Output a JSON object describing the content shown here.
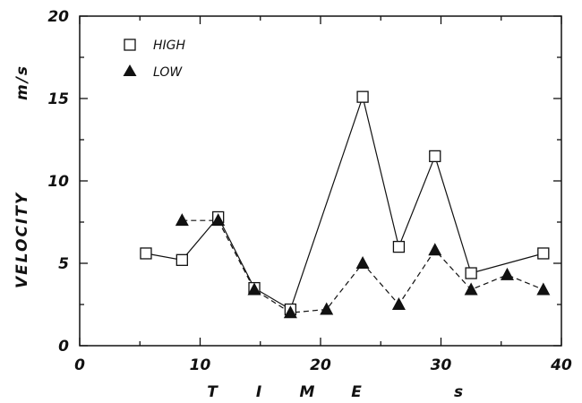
{
  "chart_data": {
    "type": "line",
    "xlim": [
      0,
      40
    ],
    "ylim": [
      0,
      20
    ],
    "x_ticks": [
      "0",
      "10",
      "20",
      "30",
      "40"
    ],
    "y_ticks": [
      "0",
      "5",
      "10",
      "15",
      "20"
    ],
    "xlabel": "T I M E",
    "xunit": "s",
    "ylabel": "VELOCITY",
    "yunit": "m/s",
    "legend_position": "top-left",
    "series": [
      {
        "name": "HIGH",
        "marker": "open-square",
        "line": "solid",
        "color": "#111111",
        "x": [
          5.5,
          8.5,
          11.5,
          14.5,
          17.5,
          23.5,
          26.5,
          29.5,
          32.5,
          38.5
        ],
        "y": [
          5.6,
          5.2,
          7.8,
          3.5,
          2.2,
          15.1,
          6.0,
          11.5,
          4.4,
          5.6
        ]
      },
      {
        "name": "LOW",
        "marker": "filled-triangle",
        "line": "dashed",
        "color": "#111111",
        "x": [
          8.5,
          11.5,
          14.5,
          17.5,
          20.5,
          23.5,
          26.5,
          29.5,
          32.5,
          35.5,
          38.5
        ],
        "y": [
          7.6,
          7.6,
          3.4,
          2.0,
          2.2,
          5.0,
          2.5,
          5.8,
          3.4,
          4.3,
          3.4
        ]
      }
    ]
  }
}
